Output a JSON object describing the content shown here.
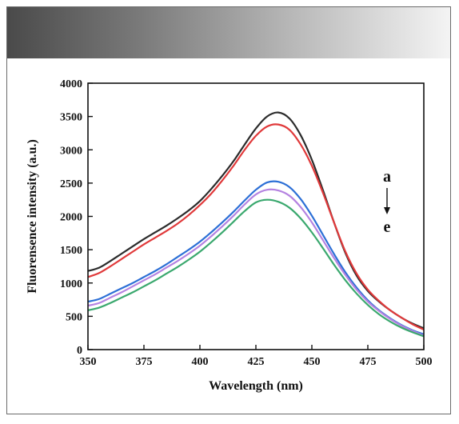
{
  "chart_data": {
    "type": "line",
    "title": "",
    "xlabel": "Wavelength (nm)",
    "ylabel": "Fluorensence intensity (a.u.)",
    "xlim": [
      350,
      500
    ],
    "ylim": [
      0,
      4000
    ],
    "xticks": [
      350,
      375,
      400,
      425,
      450,
      475,
      500
    ],
    "yticks": [
      0,
      500,
      1000,
      1500,
      2000,
      2500,
      3000,
      3500,
      4000
    ],
    "grid": false,
    "legend": "none",
    "annotation": {
      "start": "a",
      "end": "e",
      "arrow": "down",
      "placement": "right"
    },
    "x": [
      350,
      355,
      360,
      365,
      370,
      375,
      380,
      385,
      390,
      395,
      400,
      405,
      410,
      415,
      420,
      425,
      430,
      435,
      440,
      445,
      450,
      455,
      460,
      465,
      470,
      475,
      480,
      485,
      490,
      495,
      500
    ],
    "series": [
      {
        "color": "#2b2b2b",
        "values": [
          1180,
          1230,
          1330,
          1440,
          1550,
          1660,
          1760,
          1860,
          1970,
          2090,
          2230,
          2410,
          2610,
          2830,
          3080,
          3320,
          3500,
          3560,
          3470,
          3220,
          2850,
          2390,
          1900,
          1450,
          1110,
          880,
          720,
          590,
          480,
          390,
          320
        ]
      },
      {
        "color": "#e0393a",
        "values": [
          1090,
          1150,
          1250,
          1360,
          1470,
          1580,
          1680,
          1780,
          1890,
          2020,
          2170,
          2340,
          2540,
          2760,
          3000,
          3210,
          3350,
          3380,
          3300,
          3080,
          2760,
          2350,
          1900,
          1470,
          1140,
          900,
          730,
          590,
          480,
          380,
          300
        ]
      },
      {
        "color": "#2c6fd6",
        "values": [
          720,
          760,
          840,
          920,
          1000,
          1090,
          1180,
          1280,
          1390,
          1500,
          1620,
          1760,
          1910,
          2070,
          2240,
          2400,
          2510,
          2520,
          2440,
          2260,
          2010,
          1720,
          1430,
          1160,
          930,
          740,
          590,
          470,
          370,
          290,
          230
        ]
      },
      {
        "color": "#b482e0",
        "values": [
          660,
          700,
          780,
          860,
          950,
          1040,
          1130,
          1230,
          1330,
          1440,
          1560,
          1700,
          1850,
          2010,
          2180,
          2330,
          2400,
          2390,
          2310,
          2140,
          1910,
          1640,
          1370,
          1120,
          900,
          720,
          580,
          460,
          360,
          280,
          210
        ]
      },
      {
        "color": "#3aa86e",
        "values": [
          590,
          630,
          700,
          780,
          860,
          950,
          1040,
          1140,
          1240,
          1350,
          1470,
          1610,
          1760,
          1920,
          2080,
          2210,
          2250,
          2220,
          2130,
          1970,
          1760,
          1520,
          1270,
          1040,
          840,
          670,
          530,
          420,
          330,
          260,
          200
        ]
      }
    ]
  }
}
